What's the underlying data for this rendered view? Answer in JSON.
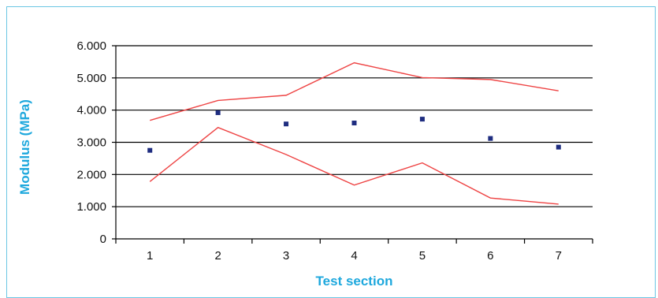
{
  "colors": {
    "frame": "#6cc6e4",
    "axis_title": "#1ea8dd",
    "band_lines": "#ee4444",
    "points": "#1f2d80",
    "grid": "#000000"
  },
  "chart_data": {
    "type": "line",
    "title": "",
    "xlabel": "Test section",
    "ylabel": "Modulus (MPa)",
    "x": [
      1,
      2,
      3,
      4,
      5,
      6,
      7
    ],
    "x_tick_labels": [
      "1",
      "2",
      "3",
      "4",
      "5",
      "6",
      "7"
    ],
    "y_tick_labels": [
      "0",
      "1.000",
      "2.000",
      "3.000",
      "4.000",
      "5.000",
      "6.000"
    ],
    "ylim": [
      0,
      6000
    ],
    "y_ticks": [
      0,
      1000,
      2000,
      3000,
      4000,
      5000,
      6000
    ],
    "grid": "horizontal",
    "legend": "none",
    "series": [
      {
        "style": "markers",
        "values": [
          2750,
          3920,
          3570,
          3600,
          3720,
          3120,
          2850
        ]
      },
      {
        "style": "line",
        "values": [
          3680,
          4300,
          4460,
          5470,
          5010,
          4950,
          4600
        ]
      },
      {
        "style": "line",
        "values": [
          1780,
          3460,
          2620,
          1670,
          2360,
          1270,
          1080
        ]
      }
    ]
  }
}
